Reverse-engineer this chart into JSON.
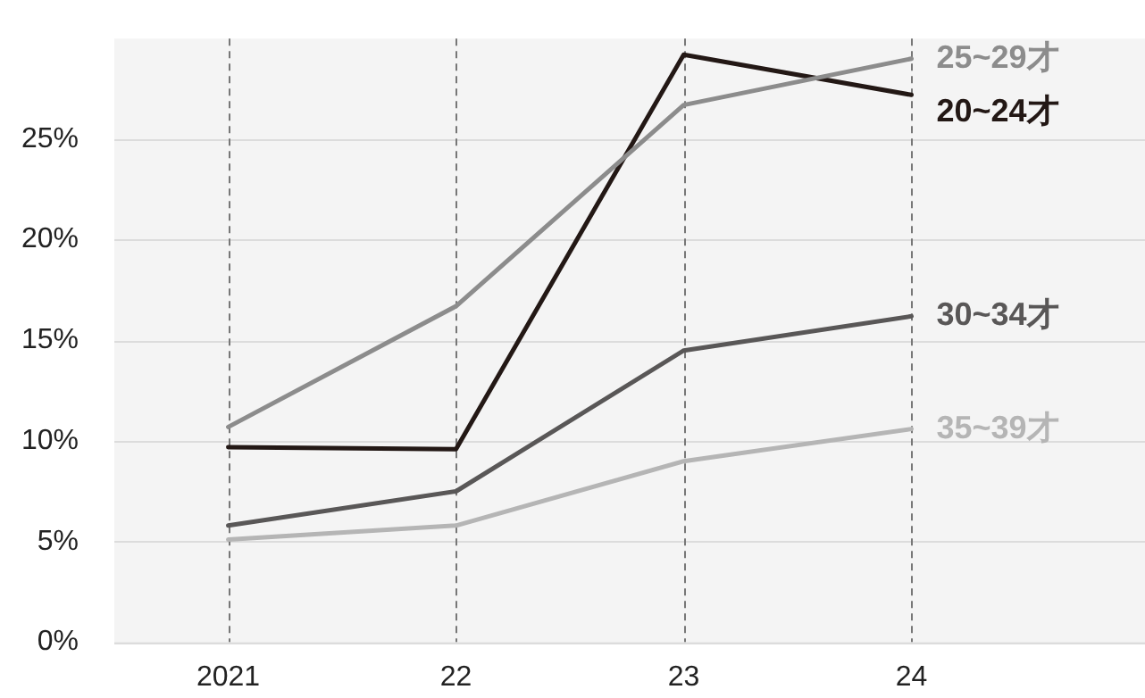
{
  "chart_data": {
    "type": "line",
    "categories": [
      "2021",
      "22",
      "23",
      "24"
    ],
    "series": [
      {
        "name": "25~29才",
        "color": "#8c8c8c",
        "values": [
          10.7,
          16.7,
          26.7,
          29.0
        ]
      },
      {
        "name": "20~24才",
        "color": "#231815",
        "values": [
          9.7,
          9.6,
          29.2,
          27.2
        ]
      },
      {
        "name": "30~34才",
        "color": "#595757",
        "values": [
          5.8,
          7.5,
          14.5,
          16.2
        ]
      },
      {
        "name": "35~39才",
        "color": "#b5b5b5",
        "values": [
          5.1,
          5.8,
          9.0,
          10.6
        ]
      }
    ],
    "ylim": [
      0,
      30
    ],
    "yticks": [
      {
        "value": 0,
        "label": "0%"
      },
      {
        "value": 5,
        "label": "5%"
      },
      {
        "value": 10,
        "label": "10%"
      },
      {
        "value": 15,
        "label": "15%"
      },
      {
        "value": 20,
        "label": "20%"
      },
      {
        "value": 25,
        "label": "25%"
      }
    ],
    "grid": true,
    "legend": false,
    "marker": "none",
    "line_style": "solid"
  }
}
